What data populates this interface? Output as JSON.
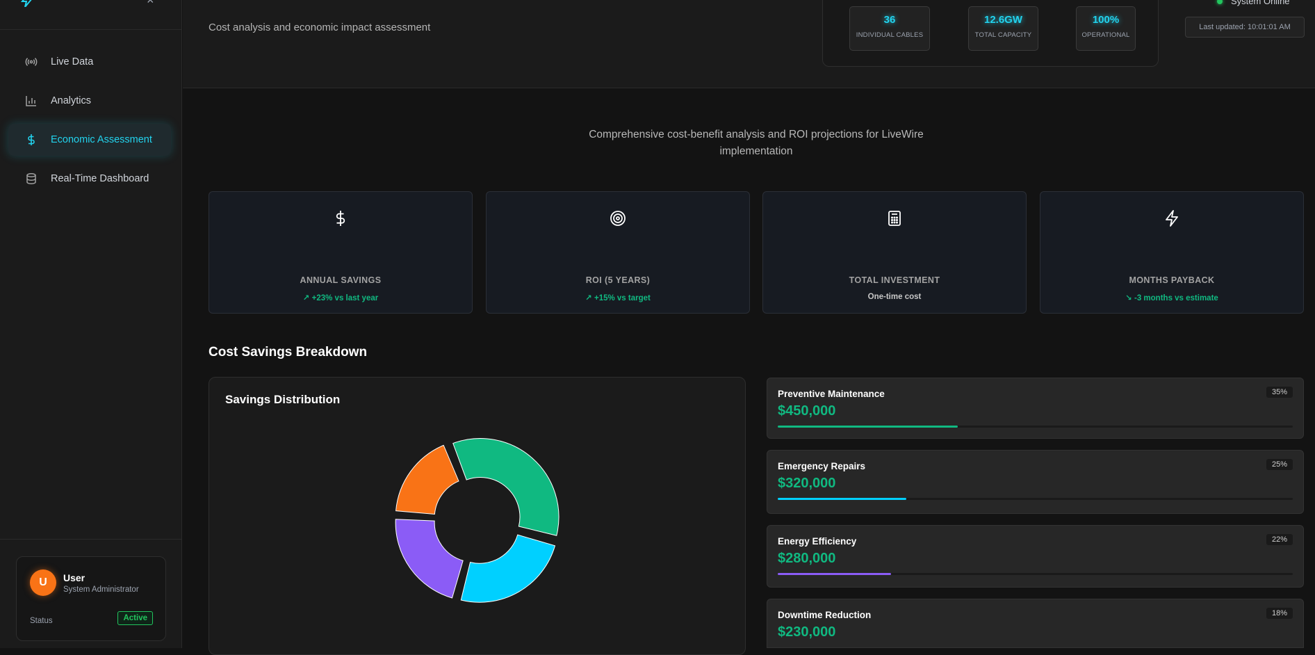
{
  "sidebar": {
    "items": [
      {
        "label": "Live Data",
        "icon": "radio-signal-icon"
      },
      {
        "label": "Analytics",
        "icon": "bar-chart-icon"
      },
      {
        "label": "Economic Assessment",
        "icon": "dollar-icon",
        "active": true
      },
      {
        "label": "Real-Time Dashboard",
        "icon": "database-icon"
      }
    ],
    "user": {
      "initial": "U",
      "name": "User",
      "role": "System Administrator",
      "status_label": "Status",
      "status": "Active"
    }
  },
  "header": {
    "subtitle": "Cost analysis and economic impact assessment",
    "stats": [
      {
        "value": "36",
        "label": "INDIVIDUAL CABLES"
      },
      {
        "value": "12.6GW",
        "label": "TOTAL CAPACITY"
      },
      {
        "value": "100%",
        "label": "OPERATIONAL"
      }
    ],
    "system_status": "System Online",
    "last_updated": "Last updated: 10:01:01 AM"
  },
  "intro": "Comprehensive cost-benefit analysis and ROI projections for LiveWire implementation",
  "kpis": [
    {
      "icon": "dollar-icon",
      "label": "ANNUAL SAVINGS",
      "note": "+23% vs last year",
      "trend": "up"
    },
    {
      "icon": "target-icon",
      "label": "ROI (5 YEARS)",
      "note": "+15% vs target",
      "trend": "up"
    },
    {
      "icon": "calculator-icon",
      "label": "TOTAL INVESTMENT",
      "note": "One-time cost",
      "trend": "none"
    },
    {
      "icon": "lightning-icon",
      "label": "MONTHS PAYBACK",
      "note": "-3 months vs estimate",
      "trend": "down"
    }
  ],
  "section_title": "Cost Savings Breakdown",
  "chart_title": "Savings Distribution",
  "breakdown": [
    {
      "name": "Preventive Maintenance",
      "amount": "$450,000",
      "pct": "35%",
      "pct_value": 35,
      "color": "#10b981"
    },
    {
      "name": "Emergency Repairs",
      "amount": "$320,000",
      "pct": "25%",
      "pct_value": 25,
      "color": "#00d0ff"
    },
    {
      "name": "Energy Efficiency",
      "amount": "$280,000",
      "pct": "22%",
      "pct_value": 22,
      "color": "#8b5cf6"
    },
    {
      "name": "Downtime Reduction",
      "amount": "$230,000",
      "pct": "18%",
      "pct_value": 18,
      "color": "#f97316"
    }
  ],
  "chart_data": {
    "type": "pie",
    "title": "Savings Distribution",
    "categories": [
      "Preventive Maintenance",
      "Emergency Repairs",
      "Energy Efficiency",
      "Downtime Reduction"
    ],
    "values": [
      450000,
      320000,
      280000,
      230000
    ],
    "colors": [
      "#10b981",
      "#00d0ff",
      "#8b5cf6",
      "#f97316"
    ],
    "donut": true
  }
}
